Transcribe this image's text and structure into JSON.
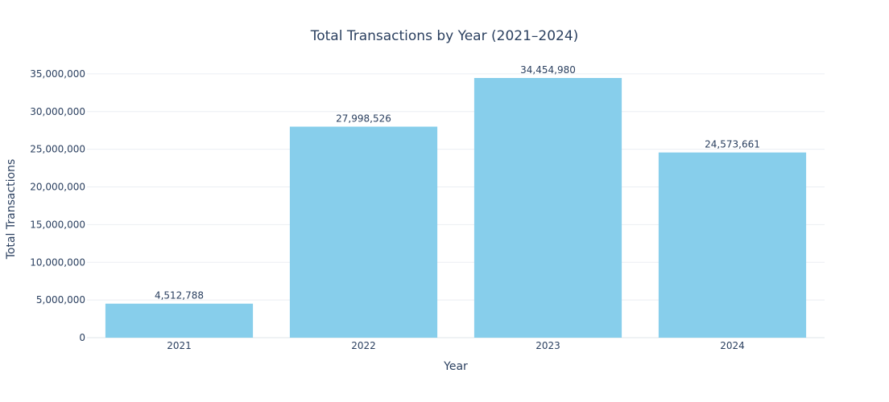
{
  "chart_data": {
    "type": "bar",
    "title": "Total Transactions by Year (2021–2024)",
    "xlabel": "Year",
    "ylabel": "Total Transactions",
    "categories": [
      "2021",
      "2022",
      "2023",
      "2024"
    ],
    "values": [
      4512788,
      27998526,
      34454980,
      24573661
    ],
    "value_labels": [
      "4,512,788",
      "27,998,526",
      "34,454,980",
      "24,573,661"
    ],
    "ylim": [
      0,
      36268400
    ],
    "y_ticks": [
      0,
      5000000,
      10000000,
      15000000,
      20000000,
      25000000,
      30000000,
      35000000
    ],
    "y_tick_labels": [
      "0",
      "5,000,000",
      "10,000,000",
      "15,000,000",
      "20,000,000",
      "25,000,000",
      "30,000,000",
      "35,000,000"
    ],
    "bar_color": "#87ceeb",
    "grid": true,
    "legend": "none"
  }
}
